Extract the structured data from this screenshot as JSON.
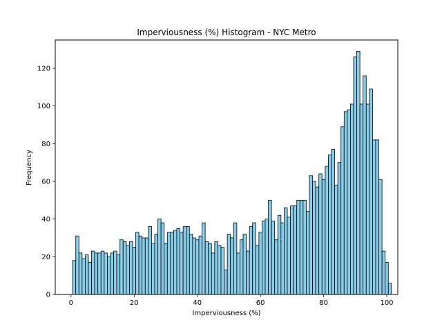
{
  "chart_data": {
    "type": "bar",
    "title": "Imperviousness (%) Histogram - NYC Metro",
    "xlabel": "Imperviousness (%)",
    "ylabel": "Frequency",
    "xlim": [
      -5,
      103.5
    ],
    "ylim": [
      0,
      135
    ],
    "xticks": [
      0,
      20,
      40,
      60,
      80,
      100
    ],
    "yticks": [
      0,
      20,
      40,
      60,
      80,
      100,
      120
    ],
    "bin_start": 0.5,
    "bin_width": 1,
    "values": [
      18,
      31,
      22,
      19,
      21,
      17,
      23,
      22,
      22,
      23,
      22,
      20,
      22,
      23,
      21,
      29,
      28,
      26,
      28,
      25,
      33,
      31,
      30,
      30,
      36,
      27,
      32,
      40,
      38,
      27,
      33,
      33,
      34,
      35,
      33,
      36,
      36,
      32,
      30,
      29,
      31,
      38,
      28,
      27,
      22,
      28,
      26,
      25,
      13,
      32,
      30,
      38,
      22,
      29,
      32,
      23,
      36,
      38,
      26,
      33,
      39,
      40,
      50,
      39,
      29,
      42,
      38,
      46,
      41,
      47,
      47,
      50,
      50,
      50,
      44,
      63,
      60,
      57,
      64,
      61,
      68,
      74,
      77,
      58,
      70,
      89,
      97,
      98,
      101,
      126,
      129,
      101,
      116,
      101,
      109,
      82,
      82,
      61,
      23,
      17,
      6
    ],
    "bar_color": "#87ceeb",
    "edge_color": "#000000",
    "grid": false
  }
}
